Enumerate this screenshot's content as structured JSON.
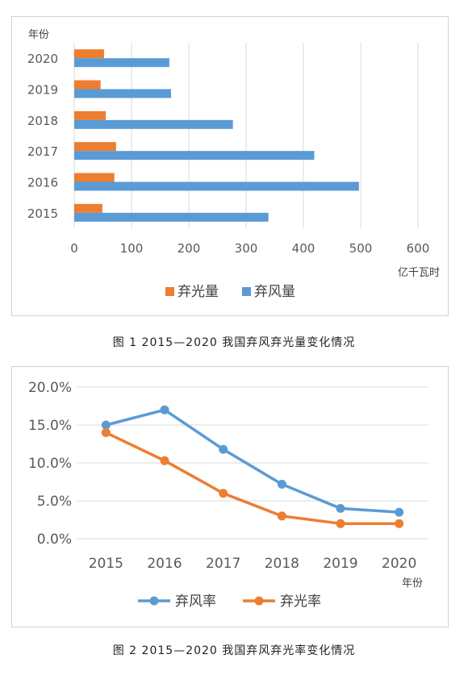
{
  "chart_data": [
    {
      "type": "bar",
      "orientation": "horizontal",
      "categories": [
        "2015",
        "2016",
        "2017",
        "2018",
        "2019",
        "2020"
      ],
      "series": [
        {
          "name": "弃光量",
          "color": "#ED7D31",
          "values": [
            49,
            70,
            73,
            55,
            46,
            52
          ]
        },
        {
          "name": "弃风量",
          "color": "#5B9BD5",
          "values": [
            339,
            497,
            419,
            277,
            169,
            166
          ]
        }
      ],
      "xlabel": "亿千瓦时",
      "ylabel": "年份",
      "xlim": [
        0,
        600
      ],
      "xticks": [
        "0",
        "100",
        "200",
        "300",
        "400",
        "500",
        "600"
      ],
      "grid": true,
      "legend": "bottom"
    },
    {
      "type": "line",
      "x": [
        "2015",
        "2016",
        "2017",
        "2018",
        "2019",
        "2020"
      ],
      "series": [
        {
          "name": "弃风率",
          "color": "#5B9BD5",
          "values": [
            15.0,
            17.0,
            11.8,
            7.2,
            4.0,
            3.5
          ]
        },
        {
          "name": "弃光率",
          "color": "#ED7D31",
          "values": [
            14.0,
            10.3,
            6.0,
            3.0,
            2.0,
            2.0
          ]
        }
      ],
      "xlabel": "年份",
      "ylim": [
        0,
        20
      ],
      "yticks": [
        "0.0%",
        "5.0%",
        "10.0%",
        "15.0%",
        "20.0%"
      ],
      "grid": true,
      "legend": "bottom"
    }
  ],
  "captions": {
    "fig1": "图 1  2015—2020 我国弃风弃光量变化情况",
    "fig2": "图 2  2015—2020 我国弃风弃光率变化情况"
  }
}
